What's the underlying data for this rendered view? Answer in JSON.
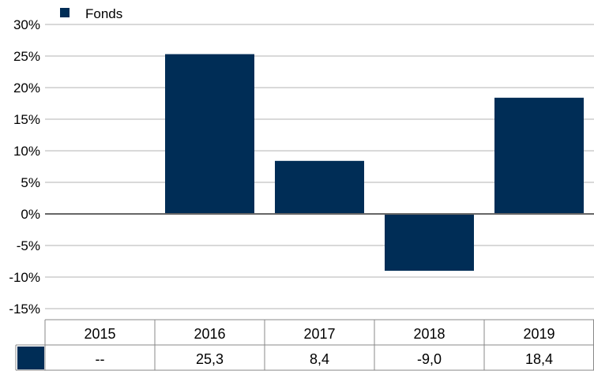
{
  "chart_data": {
    "type": "bar",
    "categories": [
      "2015",
      "2016",
      "2017",
      "2018",
      "2019"
    ],
    "series": [
      {
        "name": "Fonds",
        "values": [
          null,
          25.3,
          8.4,
          -9.0,
          18.4
        ],
        "labels": [
          "--",
          "25,3",
          "8,4",
          "-9,0",
          "18,4"
        ]
      }
    ],
    "y_ticks": [
      "30%",
      "25%",
      "20%",
      "15%",
      "10%",
      "5%",
      "0%",
      "-5%",
      "-10%",
      "-15%"
    ],
    "ylim": [
      -15,
      30
    ],
    "grid": true,
    "legend": "top-left",
    "data_table": true
  },
  "colors": {
    "bar": "#002d56",
    "grid": "#b3b3b3",
    "zero_line": "#666666",
    "table_border": "#888888"
  }
}
